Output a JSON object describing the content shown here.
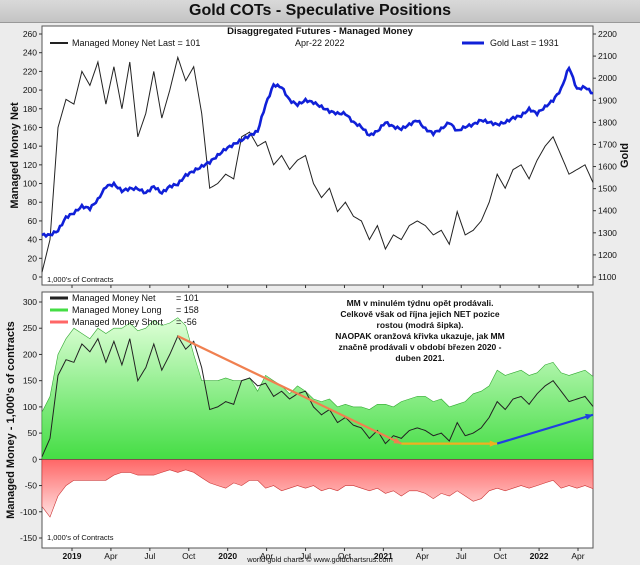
{
  "title": "Gold COTs - Speculative Positions",
  "footer": "world gold charts © www.goldchartsrus.com",
  "colors": {
    "mm_net": "#222222",
    "gold": "#1020d8",
    "long": "#44dd44",
    "short": "#ff6666",
    "orange": "#f08050",
    "yellow": "#f0b020",
    "blue": "#2040e0"
  },
  "chart_data": [
    {
      "type": "line",
      "subtitle": "Disaggregated Futures - Managed Money",
      "date_label": "Apr-22  2022",
      "ylabel_left": "Managed Money Net",
      "ylabel_right": "Gold",
      "units_note": "1,000's of Contracts",
      "ylim_left": [
        0,
        260
      ],
      "yticks_left": [
        "0",
        "20",
        "40",
        "60",
        "80",
        "100",
        "120",
        "140",
        "160",
        "180",
        "200",
        "220",
        "240",
        "260"
      ],
      "ylim_right": [
        1100,
        2200
      ],
      "yticks_right": [
        "1100",
        "1200",
        "1300",
        "1400",
        "1500",
        "1600",
        "1700",
        "1800",
        "1900",
        "2000",
        "2100",
        "2200"
      ],
      "x_ticks": [
        "2019",
        "Apr",
        "Jul",
        "Oct",
        "2020",
        "Apr",
        "Jul",
        "Oct",
        "2021",
        "Apr",
        "Jul",
        "Oct",
        "2022",
        "Apr"
      ],
      "series": [
        {
          "name": "Managed Money Net",
          "legend": "Managed Money Net   Last = 101",
          "axis": "left",
          "values": [
            5,
            40,
            160,
            190,
            185,
            220,
            205,
            230,
            185,
            225,
            180,
            230,
            150,
            175,
            220,
            170,
            200,
            235,
            210,
            225,
            175,
            95,
            100,
            110,
            105,
            150,
            155,
            140,
            145,
            120,
            130,
            115,
            125,
            130,
            100,
            85,
            95,
            70,
            80,
            65,
            60,
            40,
            55,
            30,
            45,
            40,
            55,
            60,
            55,
            45,
            50,
            35,
            70,
            45,
            50,
            60,
            80,
            110,
            95,
            115,
            120,
            105,
            125,
            140,
            150,
            130,
            110,
            115,
            120,
            101
          ]
        },
        {
          "name": "Gold",
          "legend": "Gold Last = 1931",
          "axis": "right",
          "values": [
            1290,
            1290,
            1310,
            1370,
            1390,
            1420,
            1410,
            1450,
            1510,
            1520,
            1490,
            1500,
            1500,
            1480,
            1510,
            1480,
            1510,
            1520,
            1560,
            1580,
            1600,
            1620,
            1650,
            1680,
            1700,
            1720,
            1740,
            1760,
            1880,
            1970,
            1960,
            1900,
            1880,
            1900,
            1890,
            1870,
            1850,
            1840,
            1840,
            1800,
            1780,
            1740,
            1760,
            1800,
            1780,
            1770,
            1790,
            1810,
            1770,
            1750,
            1770,
            1800,
            1760,
            1780,
            1790,
            1810,
            1800,
            1790,
            1800,
            1820,
            1830,
            1860,
            1840,
            1870,
            1900,
            1950,
            2050,
            1950,
            1960,
            1931
          ]
        }
      ]
    },
    {
      "type": "area",
      "ylabel": "Managed Money - 1,000's of contracts",
      "units_note": "1,000's of Contracts",
      "ylim": [
        -150,
        300
      ],
      "yticks": [
        "-150",
        "-100",
        "-50",
        "0",
        "50",
        "100",
        "150",
        "200",
        "250",
        "300"
      ],
      "x_ticks": [
        "2019",
        "Apr",
        "Jul",
        "Oct",
        "2020",
        "Apr",
        "Jul",
        "Oct",
        "2021",
        "Apr",
        "Jul",
        "Oct",
        "2022",
        "Apr"
      ],
      "legend": [
        {
          "label": "Managed Money Net",
          "value": "101"
        },
        {
          "label": "Managed Money Long",
          "value": "158"
        },
        {
          "label": "Managed Money Short",
          "value": "-56"
        }
      ],
      "series": [
        {
          "name": "Managed Money Long",
          "values": [
            90,
            120,
            200,
            230,
            250,
            240,
            230,
            250,
            240,
            250,
            250,
            260,
            245,
            250,
            265,
            255,
            260,
            270,
            255,
            200,
            150,
            150,
            150,
            155,
            150,
            150,
            155,
            130,
            160,
            150,
            140,
            125,
            140,
            130,
            115,
            110,
            115,
            100,
            105,
            100,
            100,
            95,
            105,
            105,
            100,
            110,
            115,
            120,
            120,
            110,
            115,
            100,
            105,
            110,
            125,
            130,
            140,
            170,
            160,
            165,
            170,
            160,
            165,
            180,
            185,
            165,
            160,
            165,
            170,
            158
          ]
        },
        {
          "name": "Managed Money Short",
          "values": [
            -90,
            -110,
            -70,
            -50,
            -40,
            -40,
            -40,
            -40,
            -40,
            -30,
            -25,
            -25,
            -30,
            -30,
            -30,
            -25,
            -20,
            -25,
            -20,
            -25,
            -35,
            -45,
            -50,
            -55,
            -45,
            -50,
            -40,
            -40,
            -55,
            -50,
            -60,
            -55,
            -50,
            -55,
            -50,
            -60,
            -55,
            -60,
            -50,
            -50,
            -55,
            -60,
            -55,
            -65,
            -60,
            -70,
            -60,
            -60,
            -65,
            -75,
            -65,
            -70,
            -60,
            -70,
            -80,
            -75,
            -60,
            -55,
            -60,
            -55,
            -50,
            -55,
            -50,
            -45,
            -40,
            -55,
            -50,
            -55,
            -50,
            -56
          ]
        },
        {
          "name": "Managed Money Net",
          "values": [
            5,
            40,
            160,
            190,
            185,
            220,
            205,
            230,
            185,
            225,
            180,
            230,
            150,
            175,
            220,
            170,
            200,
            235,
            210,
            225,
            175,
            95,
            100,
            110,
            105,
            150,
            155,
            140,
            145,
            120,
            130,
            115,
            125,
            130,
            100,
            85,
            95,
            70,
            80,
            65,
            60,
            40,
            55,
            30,
            45,
            40,
            55,
            60,
            55,
            45,
            50,
            35,
            70,
            45,
            50,
            60,
            80,
            110,
            95,
            115,
            120,
            105,
            125,
            140,
            150,
            130,
            110,
            115,
            120,
            101
          ]
        }
      ],
      "annotation": [
        "MM v minulém týdnu opět prodávali.",
        "Celkově však od října jejich NET pozice",
        "rostou (modrá šipka).",
        "NAOPAK oranžová křivka ukazuje, jak MM",
        "značně prodávali v období březen 2020 -",
        "duben 2021."
      ],
      "arrows": [
        {
          "name": "orange",
          "from": [
            17,
            235
          ],
          "to": [
            45,
            30
          ]
        },
        {
          "name": "yellow",
          "from": [
            45,
            30
          ],
          "to": [
            57,
            30
          ]
        },
        {
          "name": "blue",
          "from": [
            57,
            30
          ],
          "to": [
            69,
            85
          ]
        }
      ]
    }
  ]
}
